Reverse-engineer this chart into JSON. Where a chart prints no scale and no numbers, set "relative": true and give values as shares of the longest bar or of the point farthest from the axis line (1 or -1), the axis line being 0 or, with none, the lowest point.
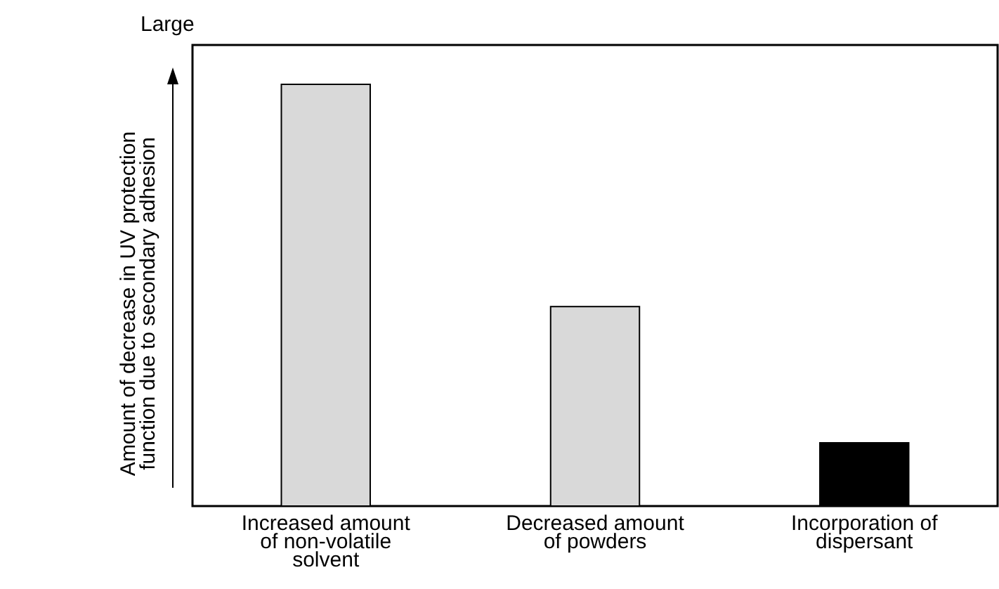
{
  "chart_data": {
    "type": "bar",
    "ylabel": "Amount of decrease in UV protection function due to secondary adhesion",
    "annotations": [
      "Large"
    ],
    "relative": true,
    "categories": [
      "Increased amount of non-volatile solvent",
      "Decreased amount of powders",
      "Incorporation of dispersant"
    ],
    "values": [
      1,
      0.473,
      0.15
    ],
    "colors": [
      "#d9d9d9",
      "#d9d9d9",
      "#000000"
    ]
  }
}
